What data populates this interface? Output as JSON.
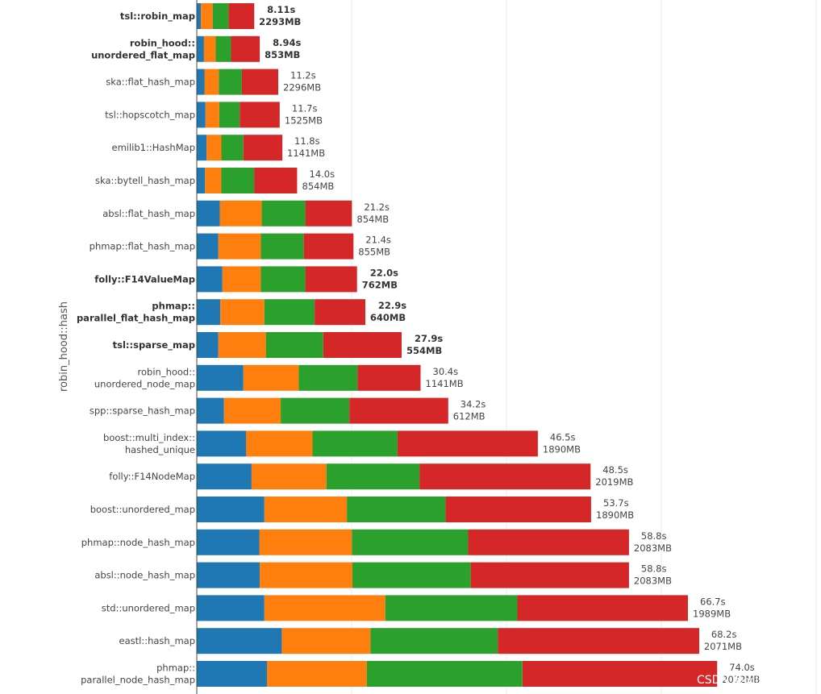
{
  "chart_data": {
    "type": "bar",
    "orientation": "horizontal",
    "stacked": true,
    "ylabel": "robin_hood::hash",
    "grid": true,
    "legend": "none",
    "categories": [
      {
        "lines": [
          "tsl::robin_map"
        ],
        "bold": true
      },
      {
        "lines": [
          "robin_hood::",
          "unordered_flat_map"
        ],
        "bold": true
      },
      {
        "lines": [
          "ska::flat_hash_map"
        ],
        "bold": false
      },
      {
        "lines": [
          "tsl::hopscotch_map"
        ],
        "bold": false
      },
      {
        "lines": [
          "emilib1::HashMap"
        ],
        "bold": false
      },
      {
        "lines": [
          "ska::bytell_hash_map"
        ],
        "bold": false
      },
      {
        "lines": [
          "absl::flat_hash_map"
        ],
        "bold": false
      },
      {
        "lines": [
          "phmap::flat_hash_map"
        ],
        "bold": false
      },
      {
        "lines": [
          "folly::F14ValueMap"
        ],
        "bold": true
      },
      {
        "lines": [
          "phmap::",
          "parallel_flat_hash_map"
        ],
        "bold": true
      },
      {
        "lines": [
          "tsl::sparse_map"
        ],
        "bold": true
      },
      {
        "lines": [
          "robin_hood::",
          "unordered_node_map"
        ],
        "bold": false
      },
      {
        "lines": [
          "spp::sparse_hash_map"
        ],
        "bold": false
      },
      {
        "lines": [
          "boost::multi_index::",
          "hashed_unique"
        ],
        "bold": false
      },
      {
        "lines": [
          "folly::F14NodeMap"
        ],
        "bold": false
      },
      {
        "lines": [
          "boost::unordered_map"
        ],
        "bold": false
      },
      {
        "lines": [
          "phmap::node_hash_map"
        ],
        "bold": false
      },
      {
        "lines": [
          "absl::node_hash_map"
        ],
        "bold": false
      },
      {
        "lines": [
          "std::unordered_map"
        ],
        "bold": false
      },
      {
        "lines": [
          "eastl::hash_map"
        ],
        "bold": false
      },
      {
        "lines": [
          "phmap::",
          "parallel_node_hash_map"
        ],
        "bold": false
      }
    ],
    "series_colors": [
      "#1f77b4",
      "#ff7f0e",
      "#2ca02c",
      "#d62728"
    ],
    "segments": [
      [
        0.8,
        2.3,
        3.1,
        5.0
      ],
      [
        1.4,
        2.3,
        3.0,
        5.6
      ],
      [
        1.5,
        2.8,
        4.5,
        7.1
      ],
      [
        1.7,
        2.7,
        4.0,
        7.8
      ],
      [
        1.9,
        2.9,
        4.3,
        7.6
      ],
      [
        1.6,
        3.2,
        6.4,
        8.4
      ],
      [
        4.5,
        8.2,
        8.5,
        9.1
      ],
      [
        4.2,
        8.3,
        8.4,
        9.7
      ],
      [
        5.0,
        7.5,
        8.7,
        10.1
      ],
      [
        4.6,
        8.6,
        9.8,
        9.9
      ],
      [
        4.2,
        9.3,
        11.2,
        15.3
      ],
      [
        9.1,
        10.8,
        11.5,
        12.3
      ],
      [
        5.3,
        11.1,
        13.4,
        19.3
      ],
      [
        9.6,
        13.0,
        16.6,
        27.4
      ],
      [
        10.7,
        14.6,
        18.2,
        33.4
      ],
      [
        13.2,
        16.1,
        19.3,
        28.4
      ],
      [
        12.2,
        18.1,
        22.7,
        31.4
      ],
      [
        12.3,
        18.1,
        23.1,
        30.9
      ],
      [
        13.2,
        23.6,
        25.8,
        33.3
      ],
      [
        16.6,
        17.3,
        24.9,
        39.3
      ],
      [
        13.7,
        19.5,
        30.4,
        38.0
      ]
    ],
    "time_labels": [
      "8.11s",
      "8.94s",
      "11.2s",
      "11.7s",
      "11.8s",
      "14.0s",
      "21.2s",
      "21.4s",
      "22.0s",
      "22.9s",
      "27.9s",
      "30.4s",
      "34.2s",
      "46.5s",
      "48.5s",
      "53.7s",
      "58.8s",
      "58.8s",
      "66.7s",
      "68.2s",
      "74.0s"
    ],
    "memory_labels": [
      "2293MB",
      "853MB",
      "2296MB",
      "1525MB",
      "1141MB",
      "854MB",
      "854MB",
      "855MB",
      "762MB",
      "640MB",
      "554MB",
      "1141MB",
      "612MB",
      "1890MB",
      "2019MB",
      "1890MB",
      "2083MB",
      "2083MB",
      "1989MB",
      "2071MB",
      "2072MB"
    ],
    "xlim": [
      0,
      100
    ]
  },
  "watermark": "CSDN @天山老妖"
}
